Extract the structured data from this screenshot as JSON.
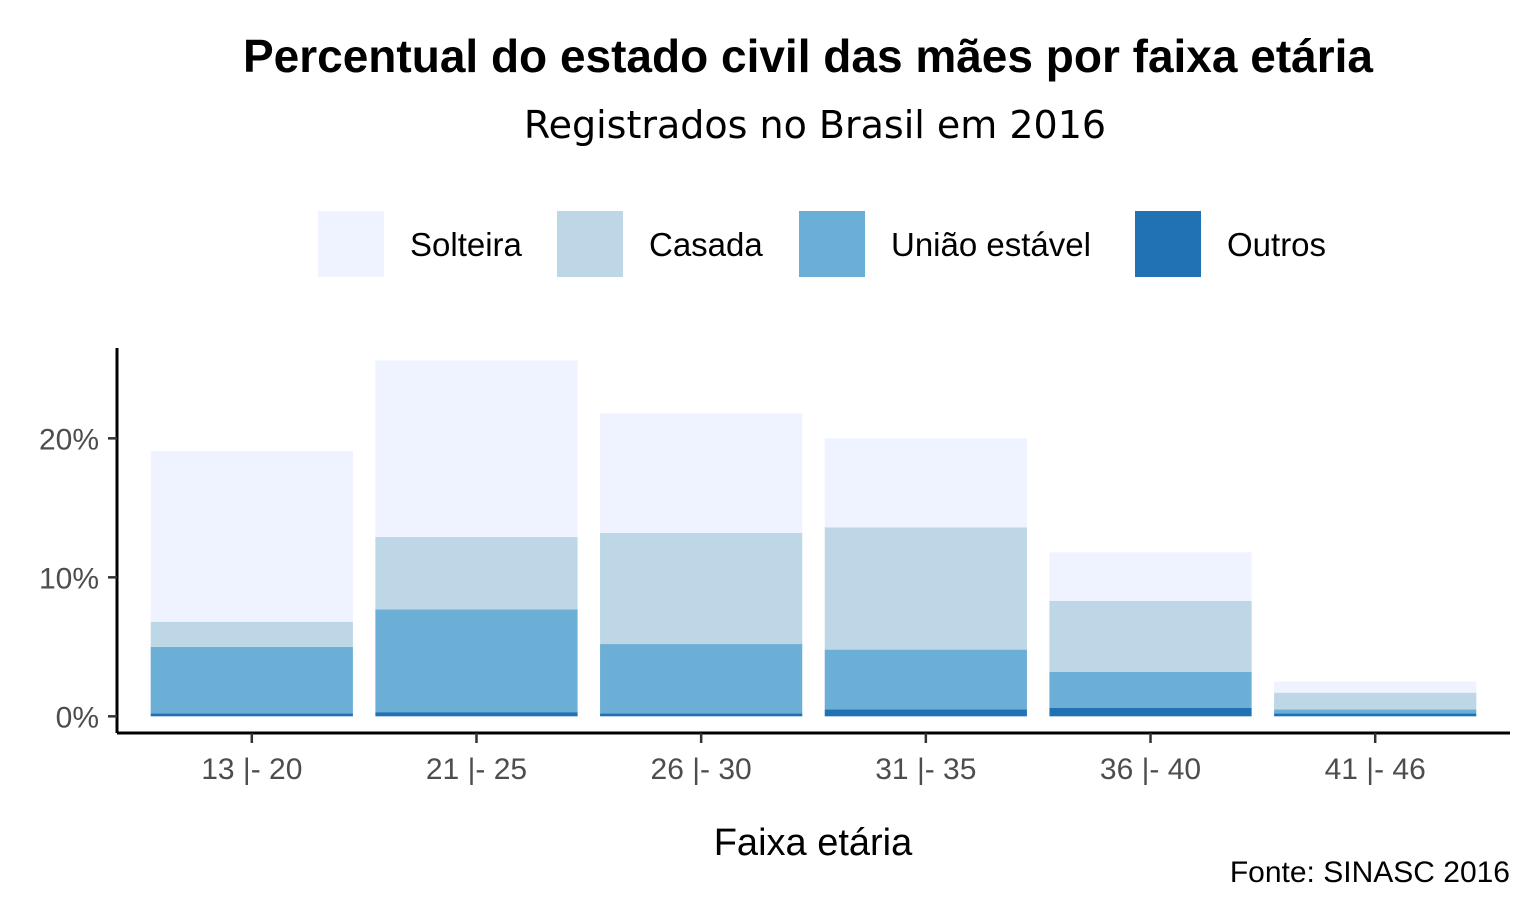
{
  "chart_data": {
    "type": "bar",
    "stacked": true,
    "title": "Percentual do estado civil das mães por faixa etária",
    "subtitle": "Registrados no Brasil em 2016",
    "xlabel": "Faixa etária",
    "ylabel": "",
    "caption": "Fonte: SINASC 2016",
    "categories": [
      "13 |- 20",
      "21 |- 25",
      "26 |- 30",
      "31 |- 35",
      "36 |- 40",
      "41 |- 46"
    ],
    "ylim": [
      -1.2,
      26.5
    ],
    "yticks": [
      0,
      10,
      20
    ],
    "ytick_labels": [
      "0%",
      "10%",
      "20%"
    ],
    "legend_position": "top",
    "grid": false,
    "series": [
      {
        "name": "Outros",
        "color": "#2171b5",
        "values": [
          0.2,
          0.3,
          0.2,
          0.5,
          0.6,
          0.2
        ]
      },
      {
        "name": "União estável",
        "color": "#6baed6",
        "values": [
          4.8,
          7.4,
          5.0,
          4.3,
          2.6,
          0.3
        ]
      },
      {
        "name": "Casada",
        "color": "#bdd7e7",
        "values": [
          1.8,
          5.2,
          8.0,
          8.8,
          5.1,
          1.2
        ]
      },
      {
        "name": "Solteira",
        "color": "#eff3ff",
        "values": [
          12.3,
          12.7,
          8.6,
          6.4,
          3.5,
          0.8
        ]
      }
    ],
    "legend_order": [
      "Solteira",
      "Casada",
      "União estável",
      "Outros"
    ]
  }
}
